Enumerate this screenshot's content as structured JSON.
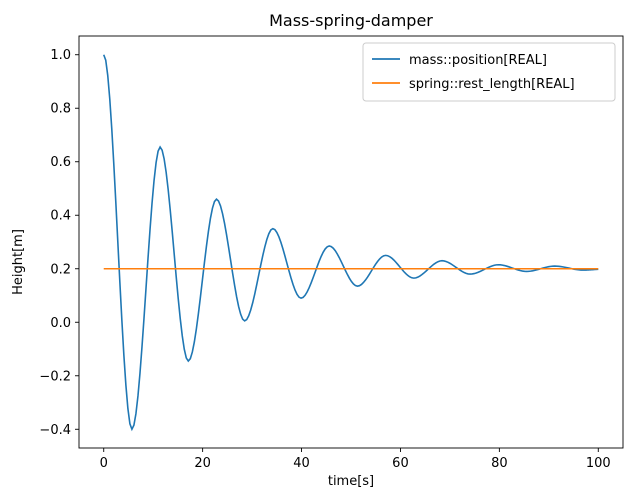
{
  "chart_data": {
    "type": "line",
    "title": "Mass-spring-damper",
    "xlabel": "time[s]",
    "ylabel": "Height[m]",
    "xlim": [
      -5,
      105
    ],
    "ylim": [
      -0.47,
      1.07
    ],
    "xticks": [
      0,
      20,
      40,
      60,
      80,
      100
    ],
    "xtick_labels": [
      "0",
      "20",
      "40",
      "60",
      "80",
      "100"
    ],
    "yticks": [
      -0.4,
      -0.2,
      0.0,
      0.2,
      0.4,
      0.6,
      0.8,
      1.0
    ],
    "ytick_labels": [
      "−0.4",
      "−0.2",
      "0.0",
      "0.2",
      "0.4",
      "0.6",
      "0.8",
      "1.0"
    ],
    "grid": false,
    "legend_position": "top-right",
    "series": [
      {
        "name": "mass::position[REAL]",
        "color": "#1f77b4",
        "x": [
          0,
          5.7,
          11.4,
          17.1,
          22.8,
          28.5,
          34.2,
          39.9,
          45.6,
          51.3,
          57.0,
          62.7,
          68.4,
          74.1,
          79.8,
          85.5,
          91.2,
          96.9,
          100
        ],
        "y": [
          1.0,
          -0.4,
          0.655,
          -0.145,
          0.46,
          0.005,
          0.35,
          0.09,
          0.285,
          0.135,
          0.25,
          0.165,
          0.23,
          0.18,
          0.215,
          0.19,
          0.21,
          0.195,
          0.198
        ]
      },
      {
        "name": "spring::rest_length[REAL]",
        "color": "#ff7f0e",
        "x": [
          0,
          100
        ],
        "y": [
          0.2,
          0.2
        ]
      }
    ]
  }
}
